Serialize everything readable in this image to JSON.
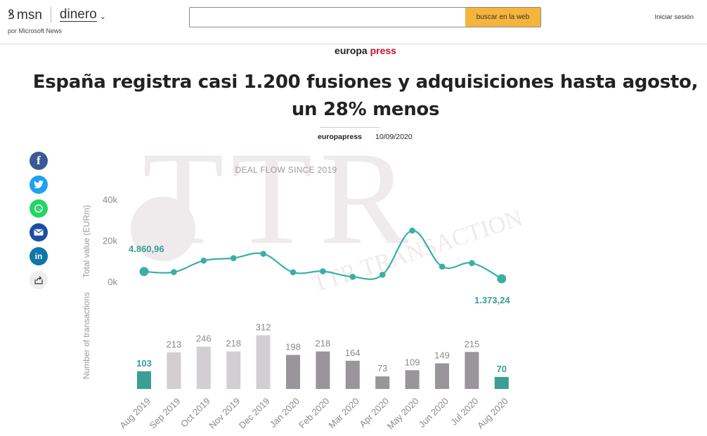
{
  "header": {
    "brand": "msn",
    "section": "dinero",
    "byline": "por Microsoft News",
    "search_placeholder": "",
    "search_button": "buscar en la web",
    "signin": "Iniciar sesión"
  },
  "article": {
    "source_prefix": "europa",
    "source_suffix": "press",
    "headline": "España registra casi 1.200 fusiones y adquisiciones hasta agosto, un 28% menos",
    "author": "europapress",
    "date": "10/09/2020"
  },
  "share": {
    "icons": [
      "facebook-icon",
      "twitter-icon",
      "whatsapp-icon",
      "email-icon",
      "linkedin-icon",
      "share-icon"
    ],
    "labels": [
      "f",
      "t",
      "w",
      "m",
      "in",
      "↗"
    ]
  },
  "colors": {
    "accent_orange": "#f5b53c",
    "teal": "#3ab0a4",
    "bar_teal": "#3a9e94",
    "bar_light": "#d2ced2",
    "bar_dark": "#9a959a",
    "watermark": "#efeaec"
  },
  "chart_data": {
    "type": "line+bar",
    "title": "DEAL FLOW SINCE 2019",
    "watermark": "TTR TRANSACTIONAL TRACK RECORD",
    "categories": [
      "Aug 2019",
      "Sep 2019",
      "Oct 2019",
      "Nov 2019",
      "Dec 2019",
      "Jan 2020",
      "Feb 2020",
      "Mar 2020",
      "Apr 2020",
      "May 2020",
      "Jun 2020",
      "Jul 2020",
      "Aug 2020"
    ],
    "line": {
      "ylabel": "Total value (EURm)",
      "yticks": [
        "0k",
        "20k",
        "40k"
      ],
      "ylim": [
        0,
        40000
      ],
      "values": [
        4860.96,
        4600,
        10200,
        11400,
        13500,
        4500,
        5000,
        2300,
        3300,
        24800,
        7300,
        9000,
        1373.24
      ],
      "annotations": [
        "4.860,96",
        "1.373,24"
      ]
    },
    "bars": {
      "ylabel": "Number of transactions",
      "values": [
        103,
        213,
        246,
        218,
        312,
        198,
        218,
        164,
        73,
        109,
        149,
        215,
        70
      ],
      "labels": [
        "103",
        "213",
        "246",
        "218",
        "312",
        "198",
        "218",
        "164",
        "73",
        "109",
        "149",
        "215",
        "70"
      ]
    }
  }
}
